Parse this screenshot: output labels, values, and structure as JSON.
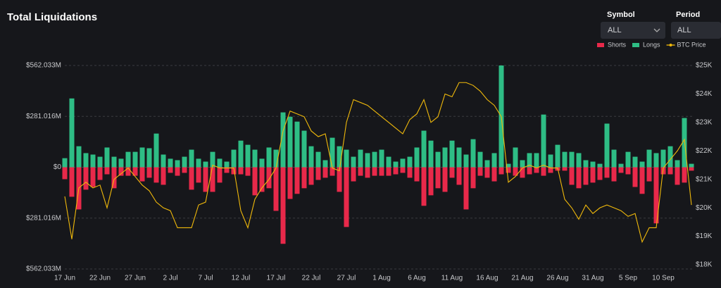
{
  "chart_data": {
    "type": "bar",
    "title": "Total Liquidations",
    "controls": [
      {
        "label": "Symbol",
        "value": "ALL"
      },
      {
        "label": "Period",
        "value": "ALL"
      }
    ],
    "categories": [
      "17 Jun",
      null,
      null,
      null,
      null,
      "22 Jun",
      null,
      null,
      null,
      null,
      "27 Jun",
      null,
      null,
      null,
      null,
      "2 Jul",
      null,
      null,
      null,
      null,
      "7 Jul",
      null,
      null,
      null,
      null,
      "12 Jul",
      null,
      null,
      null,
      null,
      "17 Jul",
      null,
      null,
      null,
      null,
      "22 Jul",
      null,
      null,
      null,
      null,
      "27 Jul",
      null,
      null,
      null,
      null,
      "1 Aug",
      null,
      null,
      null,
      null,
      "6 Aug",
      null,
      null,
      null,
      null,
      "11 Aug",
      null,
      null,
      null,
      null,
      "16 Aug",
      null,
      null,
      null,
      null,
      "21 Aug",
      null,
      null,
      null,
      null,
      "26 Aug",
      null,
      null,
      null,
      null,
      "31 Aug",
      null,
      null,
      null,
      null,
      "5 Sep",
      null,
      null,
      null,
      null,
      "10 Sep",
      null,
      null,
      null,
      null
    ],
    "series": [
      {
        "name": "Shorts",
        "type": "bar",
        "color": "#e8294a",
        "values": [
          -66,
          -163,
          -233,
          -124,
          -109,
          -70,
          -39,
          -116,
          -47,
          -47,
          -47,
          -78,
          -58,
          -85,
          -97,
          -31,
          -47,
          -31,
          -124,
          -85,
          -136,
          -136,
          -85,
          -31,
          -39,
          -39,
          -47,
          -155,
          -136,
          -116,
          -241,
          -423,
          -175,
          -147,
          -116,
          -97,
          -70,
          -58,
          -47,
          -136,
          -330,
          -78,
          -47,
          -58,
          -47,
          -47,
          -47,
          -39,
          -31,
          -58,
          -78,
          -213,
          -155,
          -116,
          -136,
          -58,
          -97,
          -233,
          -116,
          -47,
          -58,
          -78,
          -39,
          -31,
          -47,
          -58,
          -39,
          -31,
          -47,
          -31,
          -19,
          -19,
          -97,
          -116,
          -97,
          -85,
          -70,
          -58,
          -78,
          -31,
          -39,
          -109,
          -147,
          -78,
          -310,
          -39,
          -39,
          -97,
          -85,
          -19
        ]
      },
      {
        "name": "Longs",
        "type": "bar",
        "color": "#2ebd85",
        "values": [
          50,
          380,
          116,
          78,
          70,
          58,
          109,
          58,
          47,
          85,
          85,
          109,
          105,
          186,
          70,
          47,
          39,
          58,
          97,
          47,
          31,
          85,
          47,
          31,
          97,
          147,
          124,
          97,
          47,
          109,
          97,
          303,
          279,
          252,
          202,
          116,
          85,
          39,
          163,
          116,
          97,
          58,
          97,
          78,
          85,
          97,
          58,
          31,
          47,
          58,
          109,
          202,
          147,
          85,
          109,
          147,
          109,
          70,
          155,
          85,
          39,
          78,
          562,
          19,
          109,
          39,
          78,
          78,
          291,
          70,
          124,
          85,
          85,
          78,
          39,
          31,
          19,
          241,
          97,
          19,
          85,
          58,
          31,
          97,
          78,
          97,
          116,
          39,
          272,
          19
        ]
      },
      {
        "name": "BTC Price",
        "type": "line",
        "axis": "y2",
        "color": "#f0b90b",
        "values": [
          20400,
          18900,
          20700,
          20900,
          20700,
          20800,
          20000,
          21000,
          21200,
          21400,
          21100,
          20800,
          20600,
          20200,
          20000,
          19900,
          19300,
          19300,
          19300,
          20100,
          20200,
          21500,
          21400,
          21400,
          21400,
          19900,
          19300,
          20300,
          20700,
          21000,
          21400,
          22700,
          23400,
          23300,
          23200,
          22700,
          22500,
          22600,
          21400,
          21300,
          23000,
          23800,
          23700,
          23600,
          23400,
          23200,
          23000,
          22800,
          22600,
          23100,
          23300,
          23800,
          23000,
          23200,
          24000,
          23900,
          24400,
          24400,
          24300,
          24100,
          23800,
          23600,
          23200,
          20900,
          21100,
          21400,
          21500,
          21400,
          21500,
          21400,
          21400,
          20300,
          20000,
          19600,
          20100,
          19800,
          20000,
          20100,
          20000,
          19900,
          19700,
          19800,
          18800,
          19300,
          19300,
          21400,
          21700,
          22000,
          22400,
          20100
        ]
      }
    ],
    "ylim": [
      -562.033,
      562.033
    ],
    "yticks": [
      {
        "value": 562.033,
        "label": "$562.033M"
      },
      {
        "value": 281.016,
        "label": "$281.016M"
      },
      {
        "value": 0,
        "label": "$0"
      },
      {
        "value": -281.016,
        "label": "$281.016M"
      },
      {
        "value": -562.033,
        "label": "$562.033M"
      }
    ],
    "y2lim": [
      18000,
      25000
    ],
    "y2ticks": [
      {
        "value": 25000,
        "label": "$25K"
      },
      {
        "value": 24000,
        "label": "$24K"
      },
      {
        "value": 23000,
        "label": "$23K"
      },
      {
        "value": 22000,
        "label": "$22K"
      },
      {
        "value": 21000,
        "label": "$21K"
      },
      {
        "value": 20000,
        "label": "$20K"
      },
      {
        "value": 19000,
        "label": "$19K"
      },
      {
        "value": 18000,
        "label": "$18K"
      }
    ],
    "grid": true,
    "legend": "top-right"
  }
}
